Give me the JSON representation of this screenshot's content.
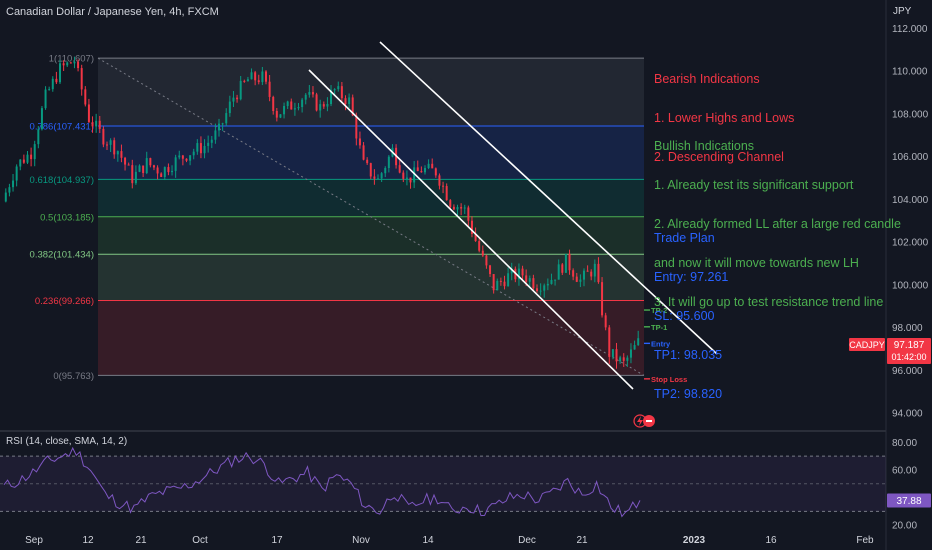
{
  "header": {
    "symbol_title": "Canadian Dollar / Japanese Yen, 4h, FXCM",
    "currency": "JPY"
  },
  "chart_data": {
    "type": "line",
    "x_ticks": [
      "Sep",
      "12",
      "21",
      "Oct",
      "17",
      "Nov",
      "14",
      "Dec",
      "21",
      "2023",
      "16",
      "Feb"
    ],
    "y_ticks": [
      "112.000",
      "110.000",
      "108.000",
      "106.000",
      "104.000",
      "102.000",
      "100.000",
      "98.000",
      "96.000",
      "94.000"
    ],
    "ylim": [
      93.3,
      112.3
    ],
    "series": [
      {
        "price_path": [
          103.9,
          105.6,
          106.2,
          108.8,
          110.1,
          110.5,
          107.8,
          106.9,
          106.3,
          105.0,
          105.7,
          105.3,
          105.8,
          106.2,
          106.5,
          107.2,
          108.8,
          109.6,
          109.7,
          108.0,
          108.4,
          108.9,
          108.3,
          109.1,
          108.6,
          105.6,
          104.9,
          106.3,
          104.9,
          105.4,
          105.3,
          103.9,
          103.5,
          101.6,
          99.9,
          100.4,
          100.5,
          100.0,
          100.3,
          101.1,
          100.2,
          100.8,
          96.8,
          96.3,
          97.3
        ]
      }
    ],
    "fib_levels": [
      {
        "label": "1(110.607)",
        "value": 110.607,
        "color": "#787b86"
      },
      {
        "label": "0.786(107.431)",
        "value": 107.431,
        "color": "#2962ff"
      },
      {
        "label": "0.618(104.937)",
        "value": 104.937,
        "color": "#089981"
      },
      {
        "label": "0.5(103.185)",
        "value": 103.185,
        "color": "#4caf50"
      },
      {
        "label": "0.382(101.434)",
        "value": 101.434,
        "color": "#81c784"
      },
      {
        "label": "0.236(99.266)",
        "value": 99.266,
        "color": "#f23645"
      },
      {
        "label": "0(95.763)",
        "value": 95.763,
        "color": "#787b86"
      }
    ],
    "trade_levels": [
      {
        "label": "TP-2",
        "value": 98.82,
        "color": "#4caf50"
      },
      {
        "label": "TP-1",
        "value": 98.035,
        "color": "#4caf50"
      },
      {
        "label": "Entry",
        "value": 97.261,
        "color": "#2962ff"
      },
      {
        "label": "Stop Loss",
        "value": 95.6,
        "color": "#f23645"
      }
    ],
    "last_price": {
      "symbol": "CADJPY",
      "value": "97.187",
      "countdown": "01:42:00",
      "color": "#f23645"
    },
    "rsi": {
      "title": "RSI (14, close, SMA, 14, 2)",
      "y_ticks": [
        "80.00",
        "60.00",
        "40.00",
        "20.00"
      ],
      "ylim": [
        18,
        86
      ],
      "band_upper": 70,
      "band_lower": 30,
      "last_value": "37.88",
      "values": [
        48,
        52,
        58,
        66,
        70,
        74,
        60,
        42,
        36,
        32,
        40,
        44,
        46,
        50,
        56,
        62,
        68,
        70,
        64,
        50,
        54,
        58,
        46,
        56,
        50,
        34,
        30,
        44,
        32,
        38,
        40,
        30,
        34,
        30,
        34,
        40,
        42,
        38,
        44,
        52,
        42,
        50,
        33,
        28,
        38
      ]
    }
  },
  "annotations": {
    "bearish": [
      "Bearish Indications",
      "1. Lower Highs and Lows",
      "2. Descending Channel"
    ],
    "bullish": [
      "Bullish Indications",
      "1. Already test its significant support",
      "2. Already formed LL after a large red candle",
      "and now it will move towards new LH",
      "3. It will go up to test resistance trend line"
    ],
    "trade_plan": [
      "Trade Plan",
      "Entry: 97.261",
      "SL: 95.600",
      "TP1: 98.035",
      "TP2: 98.820"
    ]
  },
  "colors": {
    "background": "#131722",
    "bullish_candle": "#089981",
    "bearish_candle": "#f23645",
    "rsi_line": "#7e57c2",
    "rsi_band": "#7e57c2",
    "channel_line": "#ffffff"
  },
  "icons": [
    "lightning-icon",
    "no-entry-icon"
  ]
}
